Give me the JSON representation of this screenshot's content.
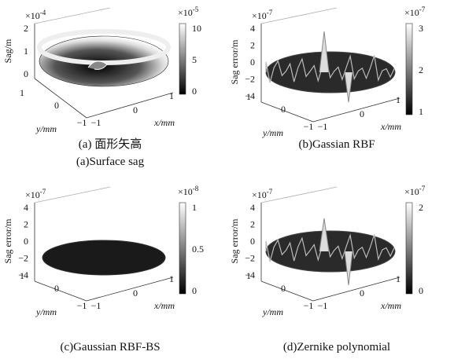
{
  "panels": [
    {
      "caption": [
        "(a) 面形矢高",
        "(a)Surface sag"
      ],
      "z_label": "Sag/m",
      "z_exponent": {
        "base": "×10",
        "power": "-4"
      },
      "z_ticks": [
        "2",
        "1",
        "0"
      ],
      "colorbar_exponent": {
        "base": "×10",
        "power": "-5"
      },
      "colorbar_ticks": [
        "10",
        "5",
        "0"
      ],
      "y_label": "y/mm",
      "y_ticks": [
        "1",
        "0",
        "−1"
      ],
      "x_label": "x/mm",
      "x_ticks": [
        "−1",
        "0",
        "1"
      ]
    },
    {
      "caption": [
        "(b)Gassian RBF"
      ],
      "z_label": "Sag error/m",
      "z_exponent": {
        "base": "×10",
        "power": "-7"
      },
      "z_ticks": [
        "4",
        "2",
        "0",
        "−2",
        "−4"
      ],
      "colorbar_exponent": {
        "base": "×10",
        "power": "-7"
      },
      "colorbar_ticks": [
        "3",
        "2",
        "1"
      ],
      "y_label": "y/mm",
      "y_ticks": [
        "1",
        "0",
        "−1"
      ],
      "x_label": "x/mm",
      "x_ticks": [
        "−1",
        "0",
        "1"
      ]
    },
    {
      "caption": [
        "(c)Gaussian RBF-BS"
      ],
      "z_label": "Sag error/m",
      "z_exponent": {
        "base": "×10",
        "power": "-7"
      },
      "z_ticks": [
        "4",
        "2",
        "0",
        "−2",
        "−4"
      ],
      "colorbar_exponent": {
        "base": "×10",
        "power": "-8"
      },
      "colorbar_ticks": [
        "1",
        "0.5",
        "0"
      ],
      "y_label": "y/mm",
      "y_ticks": [
        "1",
        "0",
        "−1"
      ],
      "x_label": "x/mm",
      "x_ticks": [
        "−1",
        "0",
        "1"
      ]
    },
    {
      "caption": [
        "(d)Zernike polynomial"
      ],
      "z_label": "Sag error/m",
      "z_exponent": {
        "base": "×10",
        "power": "-7"
      },
      "z_ticks": [
        "4",
        "2",
        "0",
        "−2",
        "−4"
      ],
      "colorbar_exponent": {
        "base": "×10",
        "power": "-7"
      },
      "colorbar_ticks": [
        "2",
        "0"
      ],
      "y_label": "y/mm",
      "y_ticks": [
        "1",
        "0",
        "−1"
      ],
      "x_label": "x/mm",
      "x_ticks": [
        "−1",
        "0",
        "1"
      ]
    }
  ]
}
